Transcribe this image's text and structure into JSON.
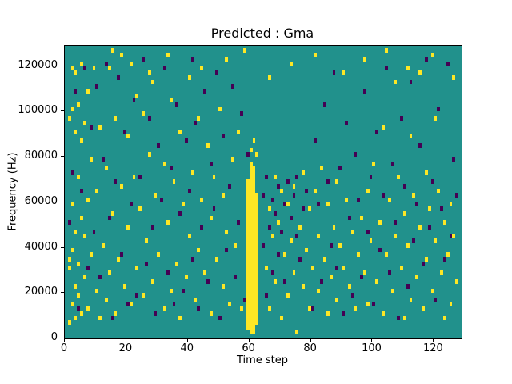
{
  "chart_data": {
    "type": "heatmap",
    "title": "Predicted : Gma",
    "xlabel": "Time step",
    "ylabel": "Frequency (Hz)",
    "xlim": [
      0,
      129
    ],
    "ylim": [
      0,
      129000
    ],
    "xticks": [
      0,
      20,
      40,
      60,
      80,
      100,
      120
    ],
    "yticks": [
      0,
      20000,
      40000,
      60000,
      80000,
      100000,
      120000
    ],
    "grid": false,
    "legend": "none",
    "colors": {
      "background": "#21918c",
      "high": "#fde725",
      "low": "#440154"
    },
    "cell_size": {
      "x": 1,
      "y": 2000
    },
    "bands": [
      {
        "color": "high",
        "x0": 59,
        "x1": 60,
        "y0": 4000,
        "y1": 70000
      },
      {
        "color": "high",
        "x0": 60,
        "x1": 61,
        "y0": 2000,
        "y1": 78000
      },
      {
        "color": "high",
        "x0": 61,
        "x1": 62,
        "y0": 2000,
        "y1": 76000
      },
      {
        "color": "high",
        "x0": 62,
        "x1": 63,
        "y0": 6000,
        "y1": 64000
      }
    ],
    "cells": {
      "high": [
        [
          1,
          6000
        ],
        [
          1,
          30000
        ],
        [
          1,
          34000
        ],
        [
          1,
          96000
        ],
        [
          2,
          14000
        ],
        [
          2,
          38000
        ],
        [
          2,
          58000
        ],
        [
          2,
          100000
        ],
        [
          2,
          118000
        ],
        [
          3,
          8000
        ],
        [
          3,
          22000
        ],
        [
          3,
          46000
        ],
        [
          3,
          90000
        ],
        [
          3,
          116000
        ],
        [
          4,
          18000
        ],
        [
          4,
          32000
        ],
        [
          4,
          70000
        ],
        [
          4,
          102000
        ],
        [
          5,
          10000
        ],
        [
          5,
          52000
        ],
        [
          5,
          86000
        ],
        [
          5,
          120000
        ],
        [
          6,
          26000
        ],
        [
          6,
          44000
        ],
        [
          6,
          94000
        ],
        [
          7,
          12000
        ],
        [
          7,
          60000
        ],
        [
          7,
          108000
        ],
        [
          8,
          36000
        ],
        [
          8,
          78000
        ],
        [
          9,
          118000
        ],
        [
          10,
          20000
        ],
        [
          10,
          64000
        ],
        [
          11,
          8000
        ],
        [
          11,
          92000
        ],
        [
          12,
          40000
        ],
        [
          13,
          16000
        ],
        [
          13,
          74000
        ],
        [
          14,
          28000
        ],
        [
          14,
          118000
        ],
        [
          15,
          54000
        ],
        [
          15,
          126000
        ],
        [
          16,
          10000
        ],
        [
          16,
          96000
        ],
        [
          17,
          34000
        ],
        [
          18,
          66000
        ],
        [
          18,
          124000
        ],
        [
          19,
          22000
        ],
        [
          20,
          48000
        ],
        [
          20,
          88000
        ],
        [
          21,
          14000
        ],
        [
          21,
          120000
        ],
        [
          22,
          70000
        ],
        [
          23,
          30000
        ],
        [
          23,
          106000
        ],
        [
          24,
          56000
        ],
        [
          25,
          18000
        ],
        [
          25,
          98000
        ],
        [
          26,
          42000
        ],
        [
          27,
          80000
        ],
        [
          27,
          116000
        ],
        [
          28,
          24000
        ],
        [
          28,
          112000
        ],
        [
          29,
          62000
        ],
        [
          30,
          36000
        ],
        [
          32,
          12000
        ],
        [
          32,
          76000
        ],
        [
          33,
          50000
        ],
        [
          33,
          124000
        ],
        [
          34,
          20000
        ],
        [
          34,
          104000
        ],
        [
          35,
          68000
        ],
        [
          36,
          32000
        ],
        [
          37,
          8000
        ],
        [
          37,
          90000
        ],
        [
          38,
          58000
        ],
        [
          39,
          26000
        ],
        [
          40,
          44000
        ],
        [
          40,
          114000
        ],
        [
          41,
          72000
        ],
        [
          42,
          16000
        ],
        [
          43,
          38000
        ],
        [
          43,
          96000
        ],
        [
          44,
          60000
        ],
        [
          44,
          118000
        ],
        [
          45,
          28000
        ],
        [
          46,
          84000
        ],
        [
          47,
          10000
        ],
        [
          47,
          52000
        ],
        [
          48,
          70000
        ],
        [
          49,
          34000
        ],
        [
          50,
          100000
        ],
        [
          51,
          22000
        ],
        [
          51,
          62000
        ],
        [
          52,
          46000
        ],
        [
          52,
          122000
        ],
        [
          53,
          14000
        ],
        [
          54,
          78000
        ],
        [
          55,
          40000
        ],
        [
          56,
          90000
        ],
        [
          57,
          12000
        ],
        [
          58,
          126000
        ],
        [
          60,
          82000
        ],
        [
          61,
          86000
        ],
        [
          62,
          80000
        ],
        [
          65,
          30000
        ],
        [
          66,
          12000
        ],
        [
          66,
          56000
        ],
        [
          66,
          114000
        ],
        [
          67,
          44000
        ],
        [
          68,
          24000
        ],
        [
          68,
          70000
        ],
        [
          69,
          50000
        ],
        [
          70,
          8000
        ],
        [
          70,
          64000
        ],
        [
          71,
          36000
        ],
        [
          72,
          18000
        ],
        [
          72,
          58000
        ],
        [
          73,
          42000
        ],
        [
          73,
          120000
        ],
        [
          74,
          28000
        ],
        [
          74,
          66000
        ],
        [
          75,
          2000
        ],
        [
          76,
          48000
        ],
        [
          77,
          22000
        ],
        [
          77,
          72000
        ],
        [
          78,
          38000
        ],
        [
          79,
          12000
        ],
        [
          79,
          56000
        ],
        [
          80,
          30000
        ],
        [
          81,
          64000
        ],
        [
          81,
          124000
        ],
        [
          82,
          20000
        ],
        [
          82,
          44000
        ],
        [
          83,
          74000
        ],
        [
          84,
          34000
        ],
        [
          85,
          10000
        ],
        [
          85,
          58000
        ],
        [
          86,
          26000
        ],
        [
          87,
          48000
        ],
        [
          88,
          16000
        ],
        [
          88,
          68000
        ],
        [
          89,
          40000
        ],
        [
          90,
          30000
        ],
        [
          90,
          116000
        ],
        [
          91,
          60000
        ],
        [
          92,
          22000
        ],
        [
          93,
          46000
        ],
        [
          94,
          12000
        ],
        [
          95,
          36000
        ],
        [
          96,
          52000
        ],
        [
          97,
          28000
        ],
        [
          97,
          122000
        ],
        [
          98,
          14000
        ],
        [
          98,
          64000
        ],
        [
          99,
          42000
        ],
        [
          100,
          76000
        ],
        [
          101,
          24000
        ],
        [
          102,
          50000
        ],
        [
          103,
          10000
        ],
        [
          103,
          92000
        ],
        [
          104,
          36000
        ],
        [
          104,
          126000
        ],
        [
          105,
          60000
        ],
        [
          106,
          20000
        ],
        [
          107,
          44000
        ],
        [
          107,
          112000
        ],
        [
          108,
          70000
        ],
        [
          109,
          30000
        ],
        [
          110,
          8000
        ],
        [
          110,
          54000
        ],
        [
          111,
          40000
        ],
        [
          111,
          118000
        ],
        [
          112,
          16000
        ],
        [
          112,
          88000
        ],
        [
          113,
          62000
        ],
        [
          114,
          26000
        ],
        [
          115,
          48000
        ],
        [
          115,
          116000
        ],
        [
          116,
          12000
        ],
        [
          117,
          34000
        ],
        [
          117,
          72000
        ],
        [
          118,
          56000
        ],
        [
          119,
          20000
        ],
        [
          119,
          124000
        ],
        [
          120,
          42000
        ],
        [
          120,
          96000
        ],
        [
          121,
          64000
        ],
        [
          122,
          28000
        ],
        [
          123,
          8000
        ],
        [
          123,
          50000
        ],
        [
          124,
          36000
        ],
        [
          125,
          14000
        ],
        [
          125,
          58000
        ],
        [
          126,
          44000
        ],
        [
          126,
          114000
        ],
        [
          127,
          24000
        ]
      ],
      "low": [
        [
          1,
          50000
        ],
        [
          2,
          72000
        ],
        [
          3,
          108000
        ],
        [
          4,
          12000
        ],
        [
          5,
          64000
        ],
        [
          6,
          118000
        ],
        [
          7,
          30000
        ],
        [
          8,
          92000
        ],
        [
          9,
          46000
        ],
        [
          10,
          110000
        ],
        [
          11,
          26000
        ],
        [
          12,
          78000
        ],
        [
          13,
          120000
        ],
        [
          14,
          52000
        ],
        [
          15,
          8000
        ],
        [
          16,
          68000
        ],
        [
          17,
          114000
        ],
        [
          18,
          36000
        ],
        [
          19,
          90000
        ],
        [
          20,
          14000
        ],
        [
          21,
          58000
        ],
        [
          22,
          104000
        ],
        [
          23,
          18000
        ],
        [
          24,
          70000
        ],
        [
          25,
          122000
        ],
        [
          26,
          32000
        ],
        [
          27,
          96000
        ],
        [
          28,
          48000
        ],
        [
          29,
          10000
        ],
        [
          30,
          84000
        ],
        [
          31,
          60000
        ],
        [
          32,
          118000
        ],
        [
          33,
          28000
        ],
        [
          34,
          74000
        ],
        [
          35,
          14000
        ],
        [
          36,
          102000
        ],
        [
          37,
          54000
        ],
        [
          38,
          20000
        ],
        [
          39,
          86000
        ],
        [
          40,
          64000
        ],
        [
          41,
          34000
        ],
        [
          41,
          122000
        ],
        [
          42,
          94000
        ],
        [
          43,
          12000
        ],
        [
          44,
          48000
        ],
        [
          45,
          108000
        ],
        [
          46,
          24000
        ],
        [
          47,
          76000
        ],
        [
          48,
          56000
        ],
        [
          49,
          116000
        ],
        [
          50,
          8000
        ],
        [
          51,
          88000
        ],
        [
          52,
          38000
        ],
        [
          53,
          66000
        ],
        [
          54,
          110000
        ],
        [
          55,
          26000
        ],
        [
          56,
          50000
        ],
        [
          57,
          98000
        ],
        [
          58,
          16000
        ],
        [
          59,
          80000
        ],
        [
          64,
          40000
        ],
        [
          64,
          62000
        ],
        [
          65,
          18000
        ],
        [
          65,
          70000
        ],
        [
          66,
          48000
        ],
        [
          67,
          28000
        ],
        [
          67,
          60000
        ],
        [
          68,
          54000
        ],
        [
          69,
          36000
        ],
        [
          69,
          66000
        ],
        [
          70,
          46000
        ],
        [
          71,
          24000
        ],
        [
          71,
          58000
        ],
        [
          72,
          68000
        ],
        [
          73,
          52000
        ],
        [
          74,
          62000
        ],
        [
          75,
          44000
        ],
        [
          75,
          70000
        ],
        [
          76,
          34000
        ],
        [
          77,
          56000
        ],
        [
          78,
          64000
        ],
        [
          80,
          12000
        ],
        [
          81,
          86000
        ],
        [
          82,
          58000
        ],
        [
          83,
          24000
        ],
        [
          84,
          102000
        ],
        [
          85,
          68000
        ],
        [
          86,
          40000
        ],
        [
          87,
          116000
        ],
        [
          88,
          30000
        ],
        [
          89,
          74000
        ],
        [
          90,
          10000
        ],
        [
          91,
          94000
        ],
        [
          92,
          52000
        ],
        [
          93,
          18000
        ],
        [
          94,
          80000
        ],
        [
          95,
          60000
        ],
        [
          96,
          26000
        ],
        [
          97,
          108000
        ],
        [
          98,
          46000
        ],
        [
          99,
          70000
        ],
        [
          100,
          14000
        ],
        [
          101,
          90000
        ],
        [
          102,
          38000
        ],
        [
          103,
          62000
        ],
        [
          104,
          118000
        ],
        [
          105,
          28000
        ],
        [
          106,
          76000
        ],
        [
          107,
          50000
        ],
        [
          108,
          8000
        ],
        [
          109,
          96000
        ],
        [
          110,
          66000
        ],
        [
          111,
          22000
        ],
        [
          112,
          112000
        ],
        [
          113,
          42000
        ],
        [
          114,
          58000
        ],
        [
          115,
          84000
        ],
        [
          116,
          32000
        ],
        [
          117,
          122000
        ],
        [
          118,
          48000
        ],
        [
          119,
          68000
        ],
        [
          120,
          16000
        ],
        [
          121,
          100000
        ],
        [
          122,
          56000
        ],
        [
          123,
          34000
        ],
        [
          124,
          120000
        ],
        [
          125,
          44000
        ],
        [
          126,
          78000
        ],
        [
          127,
          62000
        ]
      ]
    }
  }
}
